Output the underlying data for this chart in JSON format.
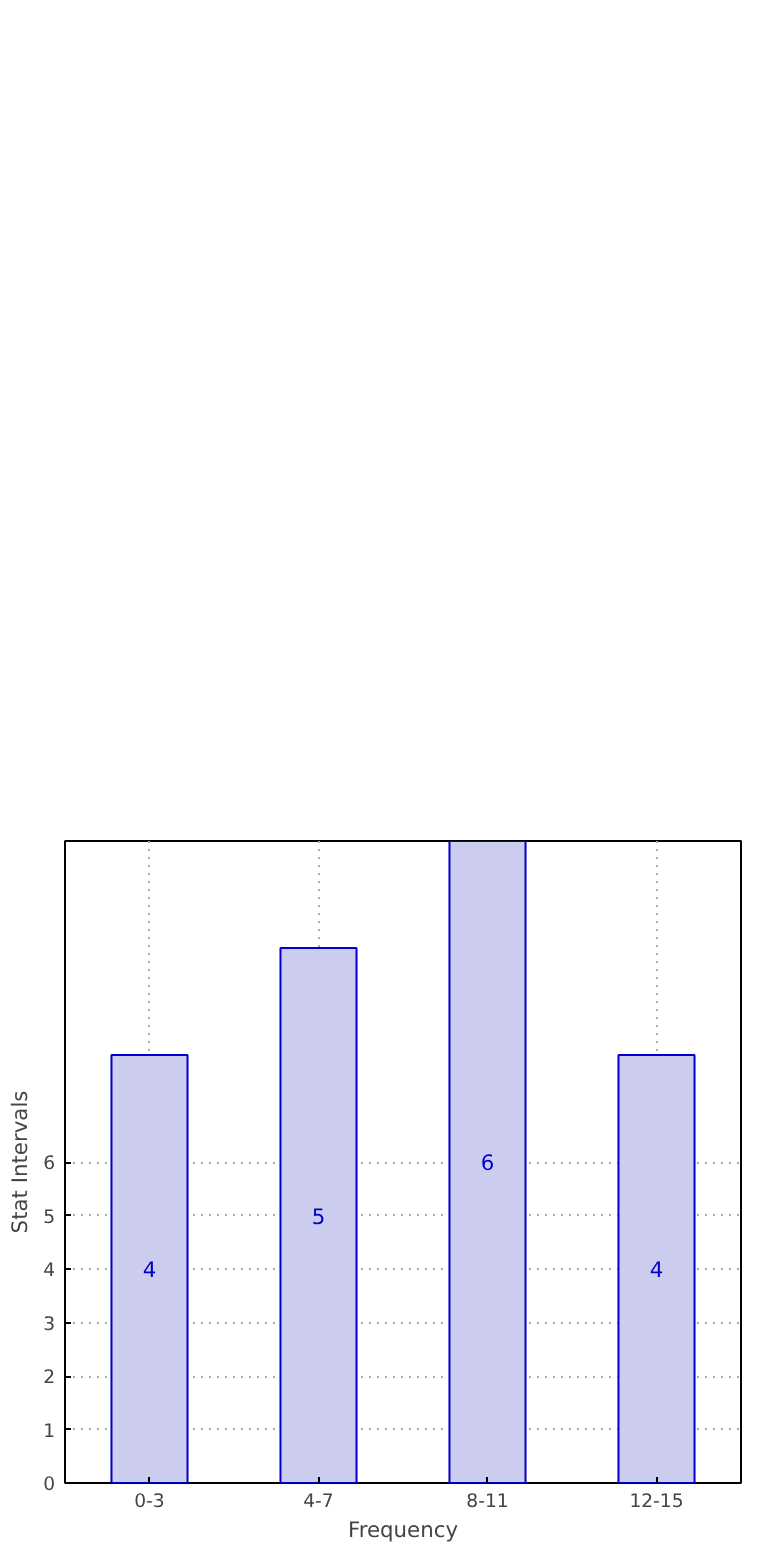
{
  "chart_data": {
    "type": "bar",
    "xlabel": "Frequency",
    "ylabel": "Stat Intervals",
    "categories": [
      "0-3",
      "4-7",
      "8-11",
      "12-15"
    ],
    "series": [
      {
        "color": "#ccccee",
        "values": [
          8,
          10,
          12,
          8
        ]
      }
    ],
    "ylim": [
      0,
      12
    ],
    "yticks": [
      0,
      1,
      2,
      3,
      4,
      5,
      6
    ],
    "grid": true,
    "annotations": [
      "4",
      "5",
      "6",
      "4"
    ]
  }
}
